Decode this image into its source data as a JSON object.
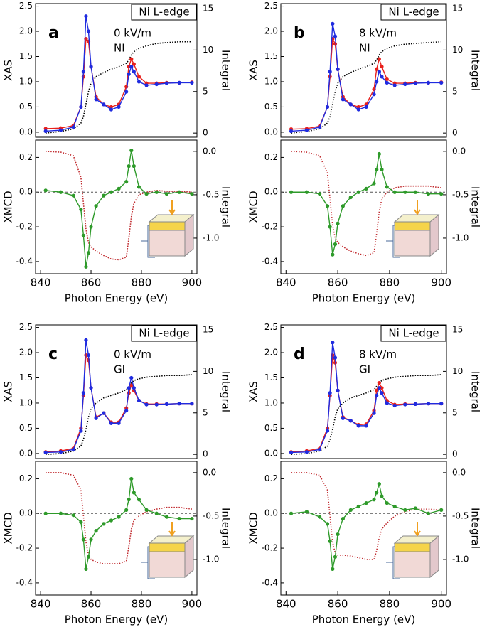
{
  "chart_data": [
    {
      "type": "line",
      "panel": "a",
      "box_label": "Ni L-edge",
      "field": "0 kV/m",
      "geometry": "NI",
      "ylabel": "XAS",
      "y2label": "Integral",
      "xlim": [
        838,
        902
      ],
      "ylim": [
        -0.1,
        2.55
      ],
      "y2lim": [
        -0.5,
        15.6
      ],
      "yticks": [
        {
          "value": 0,
          "label": "0.0"
        },
        0.5,
        {
          "value": 1,
          "label": "1.0"
        },
        1.5,
        {
          "value": 2,
          "label": "2.0"
        },
        2.5
      ],
      "y2ticks": [
        0,
        5,
        10,
        15
      ],
      "x": [
        842,
        848,
        853,
        856,
        857,
        858,
        859,
        860,
        862,
        865,
        868,
        871,
        874,
        875,
        876,
        877,
        879,
        882,
        886,
        890,
        895,
        900
      ],
      "series": [
        {
          "color": "#000000",
          "style": "dotted",
          "axis": "y2",
          "values": [
            0,
            0.2,
            0.5,
            1.2,
            2,
            3.5,
            5,
            6,
            6.8,
            7.3,
            7.7,
            8,
            8.4,
            8.8,
            9.4,
            9.8,
            10.2,
            10.5,
            10.8,
            10.9,
            11,
            11
          ]
        },
        {
          "color": "#e8201c",
          "style": "markers",
          "values": [
            0.07,
            0.08,
            0.13,
            0.5,
            1.1,
            1.85,
            1.8,
            1.3,
            0.7,
            0.55,
            0.5,
            0.55,
            0.9,
            1.3,
            1.45,
            1.35,
            1.1,
            0.97,
            0.97,
            0.98,
            0.98,
            0.99
          ]
        },
        {
          "color": "#1f2be0",
          "style": "markers",
          "values": [
            0.02,
            0.04,
            0.1,
            0.5,
            1.2,
            2.3,
            2.0,
            1.3,
            0.65,
            0.55,
            0.45,
            0.5,
            0.8,
            1.15,
            1.3,
            1.2,
            1.0,
            0.93,
            0.95,
            0.97,
            0.98,
            0.98
          ]
        }
      ]
    },
    {
      "type": "line",
      "ylabel": "XMCD",
      "y2label": "Integral",
      "xlabel": "Photon Energy (eV)",
      "xlim": [
        838,
        902
      ],
      "xticks": [
        840,
        860,
        880,
        900
      ],
      "ylim": [
        -0.47,
        0.3
      ],
      "y2lim": [
        -1.41,
        0.13
      ],
      "yticks": [
        -0.4,
        -0.2,
        {
          "value": 0,
          "label": "0.0"
        },
        0.2
      ],
      "y2ticks": [
        {
          "value": 0,
          "label": "0.0"
        },
        -0.5,
        {
          "value": -1,
          "label": "-1.0"
        }
      ],
      "x": [
        842,
        848,
        853,
        856,
        857,
        858,
        859,
        860,
        862,
        865,
        868,
        871,
        874,
        875,
        876,
        877,
        879,
        882,
        886,
        890,
        895,
        900
      ],
      "series": [
        {
          "color": "#c0282c",
          "style": "dotted",
          "axis": "y2",
          "values": [
            0,
            -0.01,
            -0.05,
            -0.3,
            -0.6,
            -0.9,
            -1.05,
            -1.1,
            -1.15,
            -1.2,
            -1.24,
            -1.25,
            -1.22,
            -1.0,
            -0.75,
            -0.6,
            -0.5,
            -0.47,
            -0.45,
            -0.46,
            -0.46,
            -0.47
          ]
        },
        {
          "color": "#2e9a2a",
          "style": "markers",
          "values": [
            0.01,
            0,
            -0.02,
            -0.1,
            -0.25,
            -0.43,
            -0.35,
            -0.2,
            -0.08,
            -0.02,
            0,
            0.02,
            0.06,
            0.15,
            0.24,
            0.15,
            0.03,
            -0.01,
            0,
            -0.01,
            0,
            -0.01
          ]
        }
      ]
    },
    {
      "type": "line",
      "panel": "b",
      "box_label": "Ni L-edge",
      "field": "8 kV/m",
      "geometry": "NI",
      "ylabel": "XAS",
      "y2label": "Integral",
      "xlim": [
        838,
        902
      ],
      "ylim": [
        -0.1,
        2.55
      ],
      "y2lim": [
        -0.5,
        15.6
      ],
      "yticks": [
        {
          "value": 0,
          "label": "0.0"
        },
        0.5,
        {
          "value": 1,
          "label": "1.0"
        },
        1.5,
        {
          "value": 2,
          "label": "2.0"
        },
        2.5
      ],
      "y2ticks": [
        0,
        5,
        10,
        15
      ],
      "x": [
        842,
        848,
        853,
        856,
        857,
        858,
        859,
        860,
        862,
        865,
        868,
        871,
        874,
        875,
        876,
        877,
        879,
        882,
        886,
        890,
        895,
        900
      ],
      "series": [
        {
          "color": "#000000",
          "style": "dotted",
          "axis": "y2",
          "values": [
            0,
            0.2,
            0.5,
            1.2,
            2,
            3.5,
            5,
            6,
            6.8,
            7.3,
            7.7,
            8,
            8.4,
            8.8,
            9.4,
            9.8,
            10.2,
            10.5,
            10.7,
            10.8,
            10.9,
            11
          ]
        },
        {
          "color": "#e8201c",
          "style": "markers",
          "values": [
            0.06,
            0.07,
            0.12,
            0.5,
            1.1,
            1.85,
            1.75,
            1.25,
            0.7,
            0.55,
            0.5,
            0.55,
            0.85,
            1.25,
            1.45,
            1.3,
            1.05,
            0.97,
            0.97,
            0.98,
            0.98,
            0.99
          ]
        },
        {
          "color": "#1f2be0",
          "style": "markers",
          "values": [
            0.02,
            0.04,
            0.1,
            0.5,
            1.2,
            2.15,
            1.9,
            1.25,
            0.65,
            0.55,
            0.45,
            0.5,
            0.75,
            1.0,
            1.2,
            1.1,
            0.98,
            0.93,
            0.95,
            0.97,
            0.98,
            0.98
          ]
        }
      ]
    },
    {
      "type": "line",
      "ylabel": "XMCD",
      "y2label": "Integral",
      "xlabel": "Photon Energy (eV)",
      "xlim": [
        838,
        902
      ],
      "xticks": [
        840,
        860,
        880,
        900
      ],
      "ylim": [
        -0.47,
        0.3
      ],
      "y2lim": [
        -1.41,
        0.13
      ],
      "yticks": [
        -0.4,
        -0.2,
        {
          "value": 0,
          "label": "0.0"
        },
        0.2
      ],
      "y2ticks": [
        {
          "value": 0,
          "label": "0.0"
        },
        -0.5,
        {
          "value": -1,
          "label": "-1.0"
        }
      ],
      "x": [
        842,
        848,
        853,
        856,
        857,
        858,
        859,
        860,
        862,
        865,
        868,
        871,
        874,
        875,
        876,
        877,
        879,
        882,
        886,
        890,
        895,
        900
      ],
      "series": [
        {
          "color": "#c0282c",
          "style": "dotted",
          "axis": "y2",
          "values": [
            0,
            -0.01,
            -0.05,
            -0.25,
            -0.55,
            -0.85,
            -1.0,
            -1.05,
            -1.1,
            -1.15,
            -1.18,
            -1.2,
            -1.17,
            -0.95,
            -0.7,
            -0.55,
            -0.47,
            -0.42,
            -0.4,
            -0.4,
            -0.4,
            -0.42
          ]
        },
        {
          "color": "#2e9a2a",
          "style": "markers",
          "values": [
            0,
            0,
            -0.01,
            -0.08,
            -0.2,
            -0.36,
            -0.3,
            -0.18,
            -0.08,
            -0.03,
            0,
            0.02,
            0.05,
            0.13,
            0.22,
            0.13,
            0.03,
            0,
            0,
            0,
            -0.01,
            -0.01
          ]
        }
      ]
    },
    {
      "type": "line",
      "panel": "c",
      "box_label": "Ni L-edge",
      "field": "0 kV/m",
      "geometry": "GI",
      "ylabel": "XAS",
      "y2label": "Integral",
      "xlim": [
        838,
        902
      ],
      "ylim": [
        -0.1,
        2.55
      ],
      "y2lim": [
        -0.5,
        15.6
      ],
      "yticks": [
        {
          "value": 0,
          "label": "0.0"
        },
        0.5,
        {
          "value": 1,
          "label": "1.0"
        },
        1.5,
        {
          "value": 2,
          "label": "2.0"
        },
        2.5
      ],
      "y2ticks": [
        0,
        5,
        10,
        15
      ],
      "x": [
        842,
        848,
        853,
        856,
        857,
        858,
        859,
        860,
        862,
        865,
        868,
        871,
        874,
        875,
        876,
        877,
        879,
        882,
        886,
        890,
        895,
        900
      ],
      "series": [
        {
          "color": "#000000",
          "style": "dotted",
          "axis": "y2",
          "values": [
            0,
            0.1,
            0.4,
            1,
            1.8,
            3,
            4.5,
            5.5,
            6.2,
            6.8,
            7.1,
            7.4,
            7.8,
            8.2,
            8.6,
            8.9,
            9.1,
            9.3,
            9.4,
            9.5,
            9.5,
            9.6
          ]
        },
        {
          "color": "#e8201c",
          "style": "markers",
          "values": [
            0.03,
            0.05,
            0.1,
            0.5,
            1.15,
            1.95,
            1.85,
            1.3,
            0.72,
            0.8,
            0.62,
            0.62,
            0.9,
            1.2,
            1.35,
            1.25,
            1.05,
            0.98,
            0.98,
            0.98,
            0.99,
            0.99
          ]
        },
        {
          "color": "#1f2be0",
          "style": "markers",
          "values": [
            0.02,
            0.03,
            0.08,
            0.45,
            1.2,
            2.25,
            1.95,
            1.3,
            0.7,
            0.8,
            0.6,
            0.6,
            0.85,
            1.3,
            1.5,
            1.3,
            1.05,
            0.97,
            0.97,
            0.98,
            0.99,
            0.99
          ]
        }
      ]
    },
    {
      "type": "line",
      "ylabel": "XMCD",
      "y2label": "Integral",
      "xlabel": "Photon Energy (eV)",
      "xlim": [
        838,
        902
      ],
      "xticks": [
        840,
        860,
        880,
        900
      ],
      "ylim": [
        -0.47,
        0.3
      ],
      "y2lim": [
        -1.41,
        0.13
      ],
      "yticks": [
        -0.4,
        -0.2,
        {
          "value": 0,
          "label": "0.0"
        },
        0.2
      ],
      "y2ticks": [
        {
          "value": 0,
          "label": "0.0"
        },
        -0.5,
        {
          "value": -1,
          "label": "-1.0"
        }
      ],
      "x": [
        842,
        848,
        853,
        856,
        857,
        858,
        859,
        860,
        862,
        865,
        868,
        871,
        874,
        875,
        876,
        877,
        879,
        882,
        886,
        890,
        895,
        900
      ],
      "series": [
        {
          "color": "#c0282c",
          "style": "dotted",
          "axis": "y2",
          "values": [
            0,
            0,
            -0.03,
            -0.2,
            -0.5,
            -0.8,
            -0.95,
            -1.0,
            -1.03,
            -1.05,
            -1.05,
            -1.05,
            -1.02,
            -0.85,
            -0.65,
            -0.55,
            -0.5,
            -0.45,
            -0.42,
            -0.4,
            -0.4,
            -0.42
          ]
        },
        {
          "color": "#2e9a2a",
          "style": "markers",
          "values": [
            0,
            0,
            -0.01,
            -0.05,
            -0.15,
            -0.32,
            -0.25,
            -0.15,
            -0.1,
            -0.06,
            -0.04,
            -0.02,
            0.02,
            0.08,
            0.2,
            0.12,
            0.08,
            0.02,
            0,
            -0.02,
            -0.03,
            -0.03
          ]
        }
      ]
    },
    {
      "type": "line",
      "panel": "d",
      "box_label": "Ni L-edge",
      "field": "8 kV/m",
      "geometry": "GI",
      "ylabel": "XAS",
      "y2label": "Integral",
      "xlim": [
        838,
        902
      ],
      "ylim": [
        -0.1,
        2.55
      ],
      "y2lim": [
        -0.5,
        15.6
      ],
      "yticks": [
        {
          "value": 0,
          "label": "0.0"
        },
        0.5,
        {
          "value": 1,
          "label": "1.0"
        },
        1.5,
        {
          "value": 2,
          "label": "2.0"
        },
        2.5
      ],
      "y2ticks": [
        0,
        5,
        10,
        15
      ],
      "x": [
        842,
        848,
        853,
        856,
        857,
        858,
        859,
        860,
        862,
        865,
        868,
        871,
        874,
        875,
        876,
        877,
        879,
        882,
        886,
        890,
        895,
        900
      ],
      "series": [
        {
          "color": "#000000",
          "style": "dotted",
          "axis": "y2",
          "values": [
            0,
            0.1,
            0.4,
            1,
            1.8,
            3,
            4.5,
            5.5,
            6.2,
            6.8,
            7.1,
            7.4,
            7.8,
            8.2,
            8.6,
            8.9,
            9.1,
            9.3,
            9.4,
            9.5,
            9.5,
            9.6
          ]
        },
        {
          "color": "#e8201c",
          "style": "markers",
          "values": [
            0.03,
            0.05,
            0.1,
            0.5,
            1.15,
            1.95,
            1.8,
            1.25,
            0.72,
            0.65,
            0.57,
            0.58,
            0.85,
            1.25,
            1.4,
            1.3,
            1.05,
            0.97,
            0.98,
            0.98,
            0.99,
            0.99
          ]
        },
        {
          "color": "#1f2be0",
          "style": "markers",
          "values": [
            0.02,
            0.03,
            0.08,
            0.45,
            1.2,
            2.2,
            1.9,
            1.25,
            0.7,
            0.65,
            0.55,
            0.55,
            0.8,
            1.15,
            1.3,
            1.2,
            1.0,
            0.95,
            0.97,
            0.98,
            0.99,
            0.99
          ]
        }
      ]
    },
    {
      "type": "line",
      "ylabel": "XMCD",
      "y2label": "Integral",
      "xlabel": "Photon Energy (eV)",
      "xlim": [
        838,
        902
      ],
      "xticks": [
        840,
        860,
        880,
        900
      ],
      "ylim": [
        -0.47,
        0.3
      ],
      "y2lim": [
        -1.41,
        0.13
      ],
      "yticks": [
        -0.4,
        -0.2,
        {
          "value": 0,
          "label": "0.0"
        },
        0.2
      ],
      "y2ticks": [
        {
          "value": 0,
          "label": "0.0"
        },
        -0.5,
        {
          "value": -1,
          "label": "-1.0"
        }
      ],
      "x": [
        842,
        848,
        853,
        856,
        857,
        858,
        859,
        860,
        862,
        865,
        868,
        871,
        874,
        875,
        876,
        877,
        879,
        882,
        886,
        890,
        895,
        900
      ],
      "series": [
        {
          "color": "#c0282c",
          "style": "dotted",
          "axis": "y2",
          "values": [
            0,
            0,
            -0.03,
            -0.2,
            -0.5,
            -0.8,
            -0.93,
            -0.95,
            -0.95,
            -0.96,
            -0.98,
            -1.0,
            -1.0,
            -0.9,
            -0.75,
            -0.65,
            -0.58,
            -0.5,
            -0.45,
            -0.42,
            -0.42,
            -0.43
          ]
        },
        {
          "color": "#2e9a2a",
          "style": "markers",
          "values": [
            0,
            0.01,
            -0.02,
            -0.06,
            -0.16,
            -0.32,
            -0.25,
            -0.12,
            -0.03,
            0.02,
            0.04,
            0.06,
            0.08,
            0.12,
            0.17,
            0.1,
            0.06,
            0.04,
            0.02,
            0.03,
            0,
            0.02
          ]
        }
      ]
    }
  ]
}
